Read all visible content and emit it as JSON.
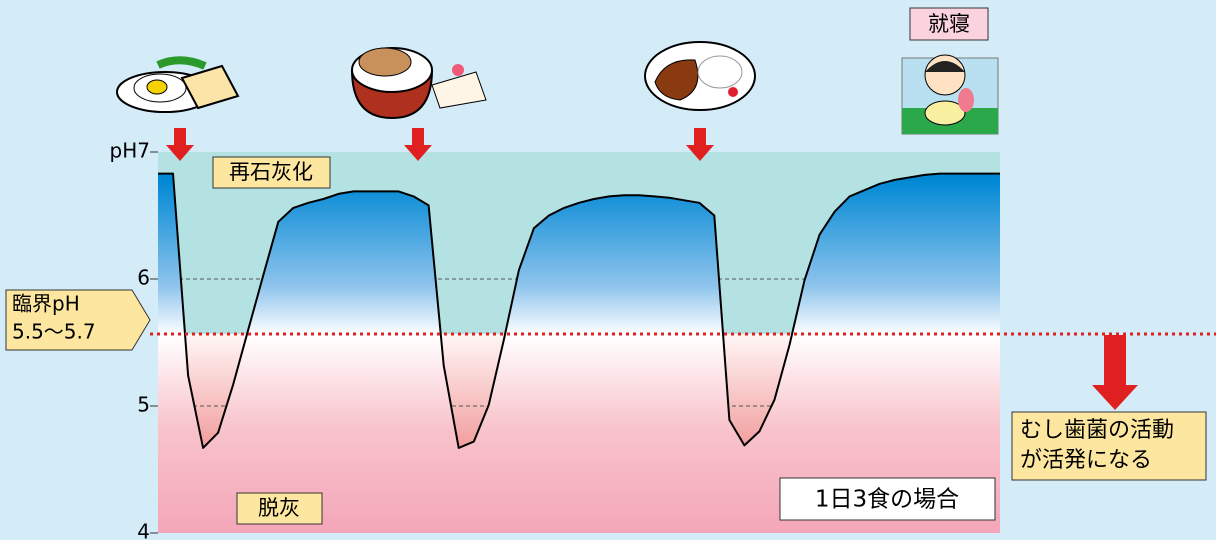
{
  "chart_data": {
    "type": "line",
    "categories": [
      null,
      null,
      null,
      null,
      null,
      null,
      null,
      null,
      null,
      null,
      null,
      null,
      null,
      null,
      null,
      null,
      null,
      null,
      null,
      null,
      null,
      null,
      null,
      null,
      null,
      null,
      null,
      null,
      null,
      null,
      null,
      null,
      null,
      null,
      null,
      null,
      null,
      null,
      null,
      null,
      null,
      null,
      null,
      null,
      null,
      null,
      null,
      null,
      null,
      null,
      null,
      null,
      null,
      null,
      null,
      null,
      null
    ],
    "values": [
      6.83,
      6.83,
      5.24,
      4.67,
      4.79,
      5.17,
      5.6,
      6.03,
      6.45,
      6.56,
      6.6,
      6.63,
      6.67,
      6.69,
      6.69,
      6.69,
      6.69,
      6.65,
      6.58,
      5.32,
      4.67,
      4.72,
      5.01,
      5.52,
      6.07,
      6.4,
      6.5,
      6.56,
      6.6,
      6.63,
      6.65,
      6.66,
      6.66,
      6.65,
      6.64,
      6.62,
      6.6,
      6.5,
      4.89,
      4.69,
      4.8,
      5.05,
      5.48,
      5.99,
      6.35,
      6.53,
      6.65,
      6.7,
      6.75,
      6.78,
      6.8,
      6.82,
      6.83,
      6.83,
      6.83,
      6.83,
      6.83
    ],
    "color": "#000000",
    "ylim": [
      4,
      7
    ],
    "yticks": [
      4,
      5,
      6,
      {
        "value": 7,
        "label": "pH7"
      }
    ],
    "grid": true,
    "remineralization_label": "再石灰化",
    "demineralization_label": "脱灰",
    "note": "1日3食の場合",
    "critical_label": [
      "臨界pH",
      "5.5〜5.7"
    ],
    "effect_label": [
      "むし歯菌の活動",
      "が活発になる"
    ],
    "bedtime_label": "就寝"
  }
}
